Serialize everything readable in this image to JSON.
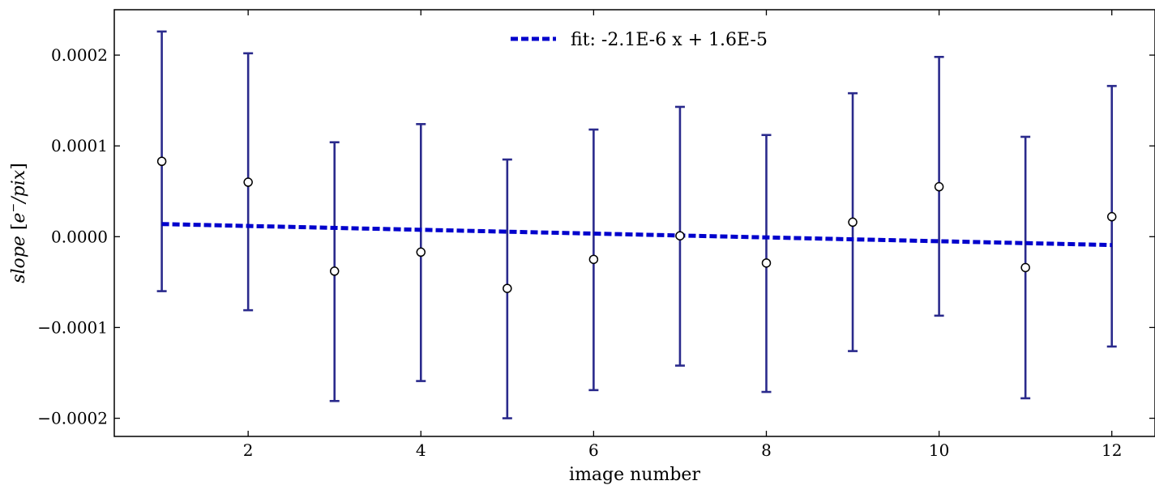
{
  "chart_data": {
    "type": "scatter",
    "title": "",
    "xlabel": "image number",
    "ylabel": "slope [e⁻/pix]",
    "ylabel_parts": {
      "main": "slope",
      "open": "[",
      "unit_e": "e",
      "unit_sup": "−",
      "unit_rest": "/pix",
      "close": "]"
    },
    "xlim": [
      0.45,
      12.5
    ],
    "ylim": [
      -0.00022,
      0.00025
    ],
    "xticks": [
      2,
      4,
      6,
      8,
      10,
      12
    ],
    "xtick_labels": [
      "2",
      "4",
      "6",
      "8",
      "10",
      "12"
    ],
    "yticks": [
      0.0002,
      0.0001,
      0.0,
      -0.0001,
      -0.0002
    ],
    "ytick_labels": [
      "0.0002",
      "0.0001",
      "0.0000",
      "−0.0001",
      "−0.0002"
    ],
    "grid": false,
    "legend_position": "top-center",
    "series": [
      {
        "kind": "errorbar",
        "x": [
          1,
          2,
          3,
          4,
          5,
          6,
          7,
          8,
          9,
          10,
          11,
          12
        ],
        "y": [
          8.3e-05,
          6e-05,
          -3.8e-05,
          -1.7e-05,
          -5.7e-05,
          -2.5e-05,
          1e-06,
          -2.9e-05,
          1.6e-05,
          5.5e-05,
          -3.4e-05,
          2.2e-05
        ],
        "yerr_upper": [
          0.000226,
          0.000202,
          0.000104,
          0.000124,
          8.5e-05,
          0.000118,
          0.000143,
          0.000112,
          0.000158,
          0.000198,
          0.00011,
          0.000166
        ],
        "yerr_lower": [
          -6e-05,
          -8.1e-05,
          -0.000181,
          -0.000159,
          -0.0002,
          -0.000169,
          -0.000142,
          -0.000171,
          -0.000126,
          -8.7e-05,
          -0.000178,
          -0.000121
        ],
        "color": "#2a2a8c",
        "marker_face": "#ffffff",
        "marker_edge": "#000000"
      },
      {
        "kind": "line",
        "name": "fit: -2.1E-6 x + 1.6E-5",
        "slope": -2.1e-06,
        "intercept": 1.6e-05,
        "x_range": [
          1,
          12
        ],
        "color": "#0000cc",
        "style": "dotted"
      }
    ]
  }
}
